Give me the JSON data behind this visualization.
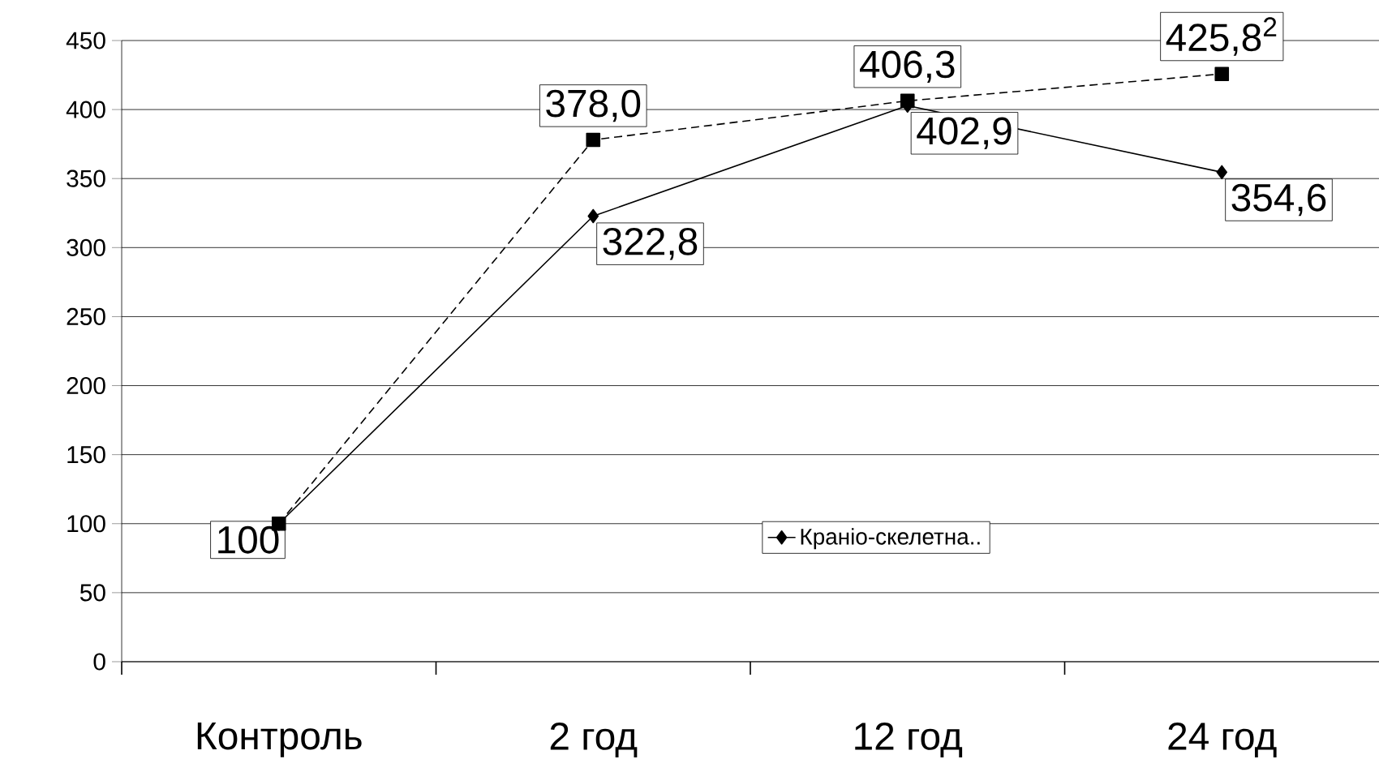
{
  "chart_data": {
    "type": "line",
    "categories": [
      "Контроль",
      "2 год",
      "12 год",
      "24 год"
    ],
    "series": [
      {
        "name": "Краніо-скелетна..",
        "color": "#000000",
        "marker": "diamond",
        "line_style": "solid",
        "values": [
          100,
          322.8,
          402.9,
          354.6
        ],
        "value_labels": [
          "100",
          "322,8",
          "402,9",
          "354,6"
        ]
      },
      {
        "color": "#000000",
        "marker": "square",
        "line_style": "dashed",
        "values": [
          100,
          378.0,
          406.3,
          425.8
        ],
        "value_labels": [
          null,
          "378,0",
          "406,3",
          "425,8$^{2}$"
        ]
      }
    ],
    "ylim": [
      0,
      450
    ],
    "yticks": [
      0,
      50,
      100,
      150,
      200,
      250,
      300,
      350,
      400,
      450
    ],
    "grid": "y",
    "legend": "bottom"
  }
}
